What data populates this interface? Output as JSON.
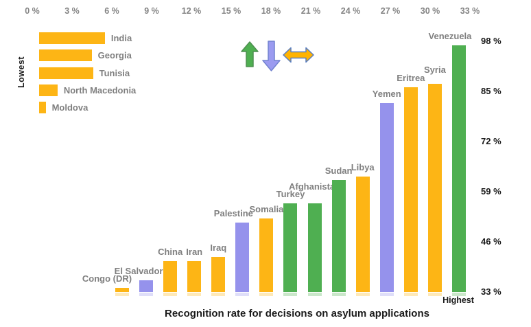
{
  "chart_data": {
    "type": "bar",
    "title": "Recognition rate for decisions on asylum applications",
    "top_axis": {
      "unit": "%",
      "tick_labels": [
        "0 %",
        "3 %",
        "6 %",
        "9 %",
        "12 %",
        "15 %",
        "18 %",
        "21 %",
        "24 %",
        "27 %",
        "30 %",
        "33 %"
      ],
      "range": [
        0,
        33
      ]
    },
    "right_axis": {
      "unit": "%",
      "ticks": [
        {
          "label": "98 %",
          "value": 98
        },
        {
          "label": "85 %",
          "value": 85
        },
        {
          "label": "72 %",
          "value": 72
        },
        {
          "label": "59 %",
          "value": 59
        },
        {
          "label": "46 %",
          "value": 46
        },
        {
          "label": "33 %",
          "value": 33
        }
      ],
      "range": [
        33,
        98
      ]
    },
    "lowest_group": {
      "label": "Lowest",
      "orientation": "horizontal",
      "bars": [
        {
          "country": "India",
          "value": 5.0
        },
        {
          "country": "Georgia",
          "value": 4.0
        },
        {
          "country": "Tunisia",
          "value": 4.1
        },
        {
          "country": "North Macedonia",
          "value": 1.4
        },
        {
          "country": "Moldova",
          "value": 0.5
        }
      ]
    },
    "highest_group": {
      "label": "Highest",
      "orientation": "vertical",
      "bars": [
        {
          "country": "Congo (DR)",
          "value": 34,
          "color_key": "orange"
        },
        {
          "country": "El Salvador",
          "value": 36,
          "color_key": "purple"
        },
        {
          "country": "China",
          "value": 41,
          "color_key": "orange"
        },
        {
          "country": "Iran",
          "value": 41,
          "color_key": "orange"
        },
        {
          "country": "Iraq",
          "value": 42,
          "color_key": "orange"
        },
        {
          "country": "Palestine",
          "value": 51,
          "color_key": "purple"
        },
        {
          "country": "Somalia",
          "value": 52,
          "color_key": "orange"
        },
        {
          "country": "Turkey",
          "value": 56,
          "color_key": "green"
        },
        {
          "country": "Afghanistan",
          "value": 56,
          "color_key": "green"
        },
        {
          "country": "Sudan",
          "value": 62,
          "color_key": "green"
        },
        {
          "country": "Libya",
          "value": 63,
          "color_key": "orange"
        },
        {
          "country": "Yemen",
          "value": 82,
          "color_key": "purple"
        },
        {
          "country": "Eritrea",
          "value": 86,
          "color_key": "orange"
        },
        {
          "country": "Syria",
          "value": 87,
          "color_key": "orange"
        },
        {
          "country": "Venezuela",
          "value": 97,
          "color_key": "green"
        }
      ]
    },
    "colors": {
      "orange": "#FDB515",
      "green": "#4FAF51",
      "purple": "#9592EC",
      "label_gray": "#7F7F7F",
      "axis_gray": "#848484",
      "text_black": "#1A1A1A",
      "arrow_up_fill": "#4FAF51",
      "arrow_up_stroke": "#4E8F50",
      "arrow_down_fill": "#9B9BF0",
      "arrow_down_stroke": "#7283CF",
      "arrow_lr_fill": "#FFB300",
      "arrow_lr_stroke": "#5A7EC0"
    }
  }
}
